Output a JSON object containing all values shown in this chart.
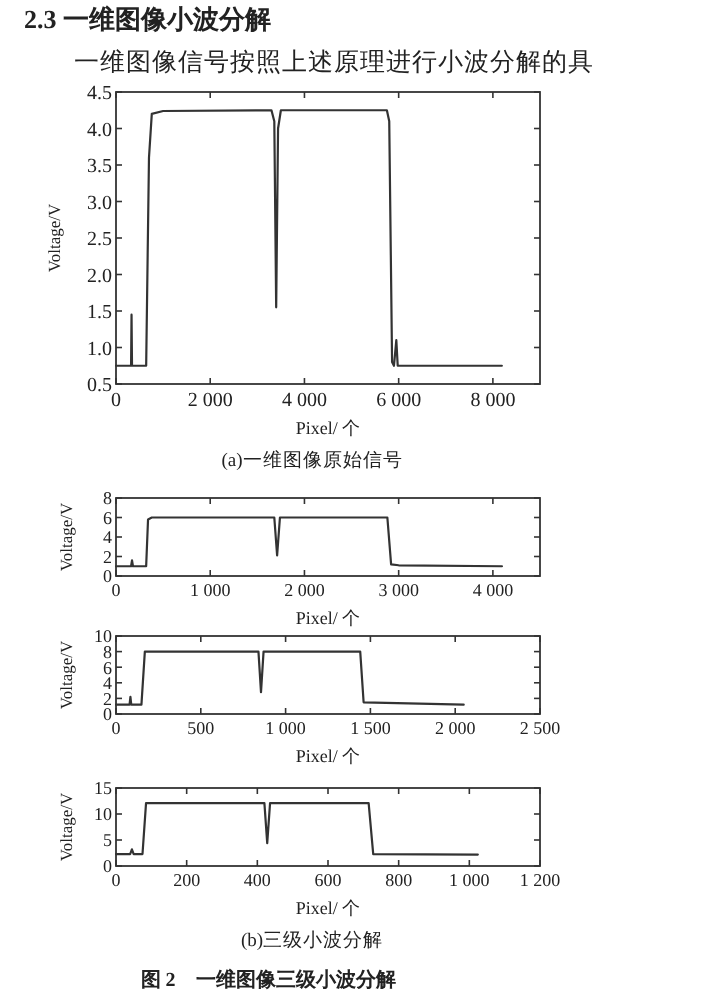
{
  "chart_data": [
    {
      "type": "line",
      "title": "2.3 一维图像小波分解",
      "subtitle": "一维图像信号按照上述原理进行小波分解的具",
      "xlabel": "Pixel/ 个",
      "ylabel": "Voltage/V",
      "annotations": [
        "(a)一维图像原始信号"
      ],
      "xlim": [
        0,
        9000
      ],
      "xticks": [
        0,
        {
          "value": 2000,
          "label": "2 000"
        },
        {
          "value": 4000,
          "label": "4 000"
        },
        {
          "value": 6000,
          "label": "6 000"
        },
        {
          "value": 8000,
          "label": "8 000"
        }
      ],
      "ylim": [
        0.5,
        4.5
      ],
      "yticks": [
        0.5,
        {
          "value": 1,
          "label": "1.0"
        },
        1.5,
        {
          "value": 2,
          "label": "2.0"
        },
        2.5,
        {
          "value": 3,
          "label": "3.0"
        },
        3.5,
        {
          "value": 4,
          "label": "4.0"
        },
        4.5
      ],
      "series": [
        {
          "color": "#333333",
          "x": [
            0,
            320,
            330,
            340,
            640,
            700,
            760,
            1000,
            3300,
            3360,
            3400,
            3440,
            3500,
            5750,
            5800,
            5860,
            5900,
            5950,
            5980,
            8190
          ],
          "values": [
            0.75,
            0.75,
            1.45,
            0.75,
            0.75,
            3.6,
            4.2,
            4.24,
            4.25,
            4.1,
            1.55,
            4.0,
            4.25,
            4.25,
            4.1,
            0.8,
            0.75,
            1.1,
            0.75,
            0.75
          ]
        }
      ]
    },
    {
      "type": "line",
      "xlabel": "Pixel/ 个",
      "ylabel": "Voltage/V",
      "xlim": [
        0,
        4500
      ],
      "xticks": [
        0,
        {
          "value": 1000,
          "label": "1 000"
        },
        {
          "value": 2000,
          "label": "2 000"
        },
        {
          "value": 3000,
          "label": "3 000"
        },
        {
          "value": 4000,
          "label": "4 000"
        }
      ],
      "ylim": [
        0,
        8
      ],
      "yticks": [
        0,
        2,
        4,
        6,
        8
      ],
      "series": [
        {
          "color": "#333333",
          "x": [
            0,
            160,
            170,
            180,
            320,
            340,
            380,
            1680,
            1710,
            1740,
            2880,
            2920,
            3000,
            4096
          ],
          "values": [
            1.0,
            1.0,
            1.6,
            1.0,
            1.0,
            5.8,
            6.0,
            6.0,
            2.1,
            6.0,
            6.0,
            1.2,
            1.1,
            1.0
          ]
        }
      ]
    },
    {
      "type": "line",
      "xlabel": "Pixel/ 个",
      "ylabel": "Voltage/V",
      "xlim": [
        0,
        2500
      ],
      "xticks": [
        0,
        500,
        {
          "value": 1000,
          "label": "1 000"
        },
        {
          "value": 1500,
          "label": "1 500"
        },
        {
          "value": 2000,
          "label": "2 000"
        },
        {
          "value": 2500,
          "label": "2 500"
        }
      ],
      "ylim": [
        0,
        10
      ],
      "yticks": [
        0,
        2,
        4,
        6,
        8,
        10
      ],
      "series": [
        {
          "color": "#333333",
          "x": [
            0,
            80,
            85,
            90,
            150,
            170,
            840,
            855,
            870,
            1440,
            1460,
            2050
          ],
          "values": [
            1.2,
            1.2,
            2.2,
            1.2,
            1.2,
            8.0,
            8.0,
            2.8,
            8.0,
            8.0,
            1.5,
            1.2
          ]
        }
      ]
    },
    {
      "type": "line",
      "xlabel": "Pixel/ 个",
      "ylabel": "Voltage/V",
      "annotations": [
        "(b)三级小波分解",
        "图 2　一维图像三级小波分解"
      ],
      "xlim": [
        0,
        1200
      ],
      "xticks": [
        0,
        200,
        400,
        600,
        800,
        {
          "value": 1000,
          "label": "1 000"
        },
        {
          "value": 1200,
          "label": "1 200"
        }
      ],
      "ylim": [
        0,
        15
      ],
      "yticks": [
        0,
        5,
        10,
        15
      ],
      "series": [
        {
          "color": "#333333",
          "x": [
            0,
            40,
            45,
            50,
            75,
            85,
            420,
            428,
            436,
            715,
            728,
            1024
          ],
          "values": [
            2.3,
            2.3,
            3.2,
            2.3,
            2.3,
            12.1,
            12.1,
            4.4,
            12.1,
            12.1,
            2.3,
            2.2
          ]
        }
      ]
    }
  ]
}
